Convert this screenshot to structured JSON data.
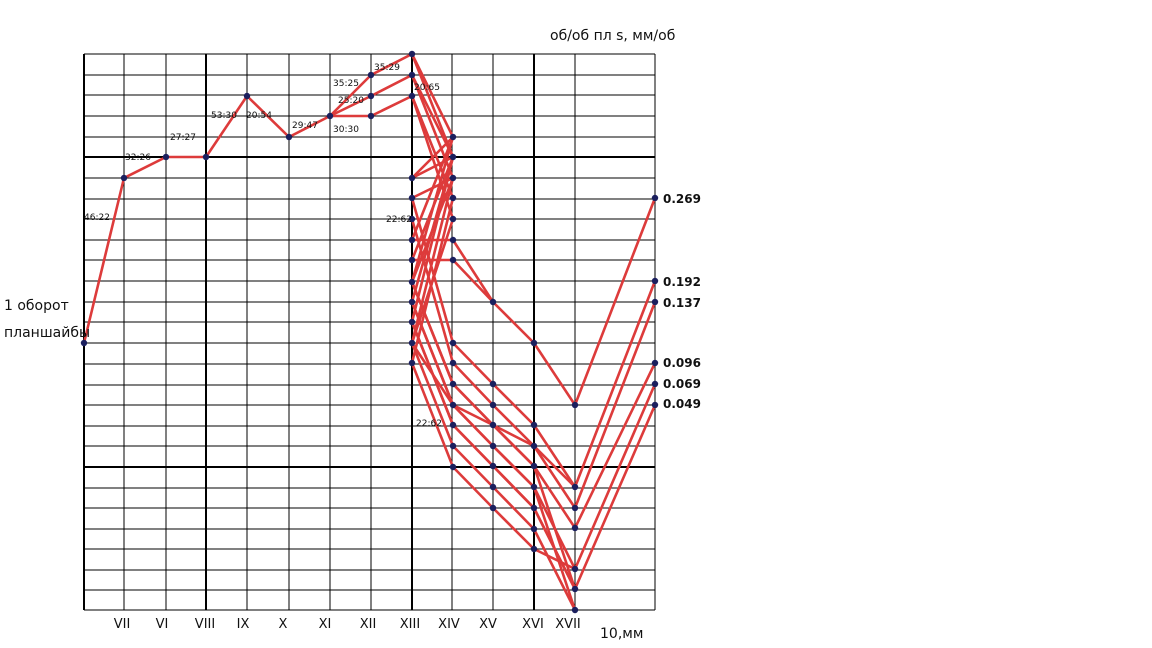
{
  "title_units": "об/об пл   s, мм/об",
  "left_label_line1": "1 оборот",
  "left_label_line2": "планшайбы",
  "x_axis_label": "10,мм",
  "shafts": [
    "VII",
    "VI",
    "VIII",
    "IX",
    "X",
    "XI",
    "XII",
    "XIII",
    "XIV",
    "XV",
    "XVI",
    "XVII"
  ],
  "ratios": [
    {
      "text": "46:22"
    },
    {
      "text": "32:26"
    },
    {
      "text": "27:27"
    },
    {
      "text": "53:30"
    },
    {
      "text": "20:54"
    },
    {
      "text": "29:47"
    },
    {
      "text": "35:25"
    },
    {
      "text": "30:30"
    },
    {
      "text": "25:20"
    },
    {
      "text": "35:29"
    },
    {
      "text": "20:65"
    },
    {
      "text": "22:62"
    },
    {
      "text": "22:62"
    }
  ],
  "feeds": [
    "0.269",
    "0.192",
    "0.137",
    "0.096",
    "0.069",
    "0.049"
  ],
  "colors": {
    "line": "#dd3b3b",
    "node": "#1b1f5e",
    "grid": "#000000"
  }
}
